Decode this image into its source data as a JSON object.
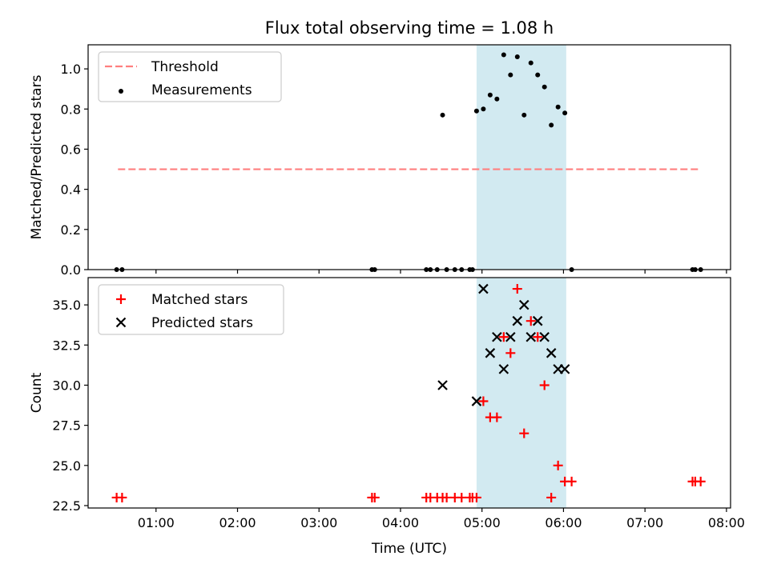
{
  "chart_data": [
    {
      "type": "scatter",
      "title": "Flux total observing time = 1.08 h",
      "xlabel": "",
      "ylabel": "Matched/Predicted stars",
      "xlim": [
        "00:10",
        "08:03"
      ],
      "ylim": [
        0.0,
        1.12
      ],
      "yticks": [
        "0.0",
        "0.2",
        "0.4",
        "0.6",
        "0.8",
        "1.0"
      ],
      "grid": false,
      "legend_position": "upper-left",
      "highlight_span": {
        "x_start": "04:56",
        "x_end": "06:02",
        "color": "#add8e6"
      },
      "series": [
        {
          "name": "Threshold",
          "kind": "dashed-line",
          "color": "#ff7f7f",
          "points": [
            [
              "00:32",
              0.5
            ],
            [
              "07:40",
              0.5
            ]
          ]
        },
        {
          "name": "Measurements",
          "kind": "dots",
          "color": "#000000",
          "points": [
            [
              "00:31",
              0.0
            ],
            [
              "00:35",
              0.0
            ],
            [
              "03:39",
              0.0
            ],
            [
              "03:41",
              0.0
            ],
            [
              "04:19",
              0.0
            ],
            [
              "04:22",
              0.0
            ],
            [
              "04:27",
              0.0
            ],
            [
              "04:31",
              0.77
            ],
            [
              "04:34",
              0.0
            ],
            [
              "04:40",
              0.0
            ],
            [
              "04:45",
              0.0
            ],
            [
              "04:51",
              0.0
            ],
            [
              "04:53",
              0.0
            ],
            [
              "04:56",
              0.79
            ],
            [
              "05:01",
              0.8
            ],
            [
              "05:06",
              0.87
            ],
            [
              "05:11",
              0.85
            ],
            [
              "05:16",
              1.07
            ],
            [
              "05:21",
              0.97
            ],
            [
              "05:26",
              1.06
            ],
            [
              "05:31",
              0.77
            ],
            [
              "05:36",
              1.03
            ],
            [
              "05:41",
              0.97
            ],
            [
              "05:46",
              0.91
            ],
            [
              "05:51",
              0.72
            ],
            [
              "05:56",
              0.81
            ],
            [
              "06:01",
              0.78
            ],
            [
              "06:06",
              0.0
            ],
            [
              "07:35",
              0.0
            ],
            [
              "07:37",
              0.0
            ],
            [
              "07:41",
              0.0
            ]
          ]
        }
      ]
    },
    {
      "type": "scatter",
      "xlabel": "Time (UTC)",
      "ylabel": "Count",
      "xlim": [
        "00:10",
        "08:03"
      ],
      "ylim": [
        22.35,
        36.7
      ],
      "xticks": [
        "01:00",
        "02:00",
        "03:00",
        "04:00",
        "05:00",
        "06:00",
        "07:00",
        "08:00"
      ],
      "yticks": [
        "22.5",
        "25.0",
        "27.5",
        "30.0",
        "32.5",
        "35.0"
      ],
      "grid": false,
      "legend_position": "upper-left",
      "highlight_span": {
        "x_start": "04:56",
        "x_end": "06:02",
        "color": "#add8e6"
      },
      "series": [
        {
          "name": "Matched stars",
          "marker": "plus",
          "color": "#ff0000",
          "points": [
            [
              "00:31",
              23
            ],
            [
              "00:35",
              23
            ],
            [
              "03:39",
              23
            ],
            [
              "03:41",
              23
            ],
            [
              "04:19",
              23
            ],
            [
              "04:22",
              23
            ],
            [
              "04:27",
              23
            ],
            [
              "04:31",
              23
            ],
            [
              "04:34",
              23
            ],
            [
              "04:40",
              23
            ],
            [
              "04:45",
              23
            ],
            [
              "04:51",
              23
            ],
            [
              "04:53",
              23
            ],
            [
              "04:56",
              23
            ],
            [
              "05:01",
              29
            ],
            [
              "05:06",
              28
            ],
            [
              "05:11",
              28
            ],
            [
              "05:16",
              33
            ],
            [
              "05:21",
              32
            ],
            [
              "05:26",
              36
            ],
            [
              "05:31",
              27
            ],
            [
              "05:36",
              34
            ],
            [
              "05:41",
              33
            ],
            [
              "05:46",
              30
            ],
            [
              "05:51",
              23
            ],
            [
              "05:56",
              25
            ],
            [
              "06:01",
              24
            ],
            [
              "06:06",
              24
            ],
            [
              "07:35",
              24
            ],
            [
              "07:37",
              24
            ],
            [
              "07:41",
              24
            ]
          ]
        },
        {
          "name": "Predicted stars",
          "marker": "x",
          "color": "#000000",
          "points": [
            [
              "04:31",
              30
            ],
            [
              "04:56",
              29
            ],
            [
              "05:01",
              36
            ],
            [
              "05:06",
              32
            ],
            [
              "05:11",
              33
            ],
            [
              "05:16",
              31
            ],
            [
              "05:21",
              33
            ],
            [
              "05:26",
              34
            ],
            [
              "05:31",
              35
            ],
            [
              "05:36",
              33
            ],
            [
              "05:41",
              34
            ],
            [
              "05:46",
              33
            ],
            [
              "05:51",
              32
            ],
            [
              "05:56",
              31
            ],
            [
              "06:01",
              31
            ]
          ]
        }
      ]
    }
  ]
}
